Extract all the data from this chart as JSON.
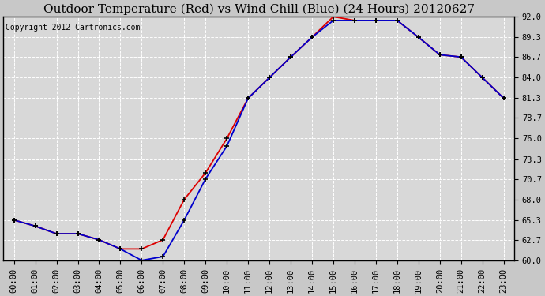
{
  "title": "Outdoor Temperature (Red) vs Wind Chill (Blue) (24 Hours) 20120627",
  "copyright": "Copyright 2012 Cartronics.com",
  "x_labels": [
    "00:00",
    "01:00",
    "02:00",
    "03:00",
    "04:00",
    "05:00",
    "06:00",
    "07:00",
    "08:00",
    "09:00",
    "10:00",
    "11:00",
    "12:00",
    "13:00",
    "14:00",
    "15:00",
    "16:00",
    "17:00",
    "18:00",
    "19:00",
    "20:00",
    "21:00",
    "22:00",
    "23:00"
  ],
  "temp_red": [
    65.3,
    64.5,
    63.5,
    63.5,
    62.7,
    61.5,
    61.5,
    62.7,
    68.0,
    71.5,
    76.0,
    81.3,
    84.0,
    86.7,
    89.3,
    92.0,
    91.5,
    91.5,
    91.5,
    89.3,
    87.0,
    86.7,
    84.0,
    81.3
  ],
  "wind_chill_blue": [
    65.3,
    64.5,
    63.5,
    63.5,
    62.7,
    61.5,
    60.0,
    60.5,
    65.3,
    70.7,
    75.0,
    81.3,
    84.0,
    86.7,
    89.3,
    91.5,
    91.5,
    91.5,
    91.5,
    89.3,
    87.0,
    86.7,
    84.0,
    81.3
  ],
  "ylim": [
    60.0,
    92.0
  ],
  "yticks": [
    60.0,
    62.7,
    65.3,
    68.0,
    70.7,
    73.3,
    76.0,
    78.7,
    81.3,
    84.0,
    86.7,
    89.3,
    92.0
  ],
  "bg_color": "#c8c8c8",
  "plot_bg_color": "#d8d8d8",
  "red_color": "#dd0000",
  "blue_color": "#0000cc",
  "grid_color": "#ffffff",
  "title_fontsize": 11,
  "copyright_fontsize": 7,
  "tick_fontsize": 7.5
}
